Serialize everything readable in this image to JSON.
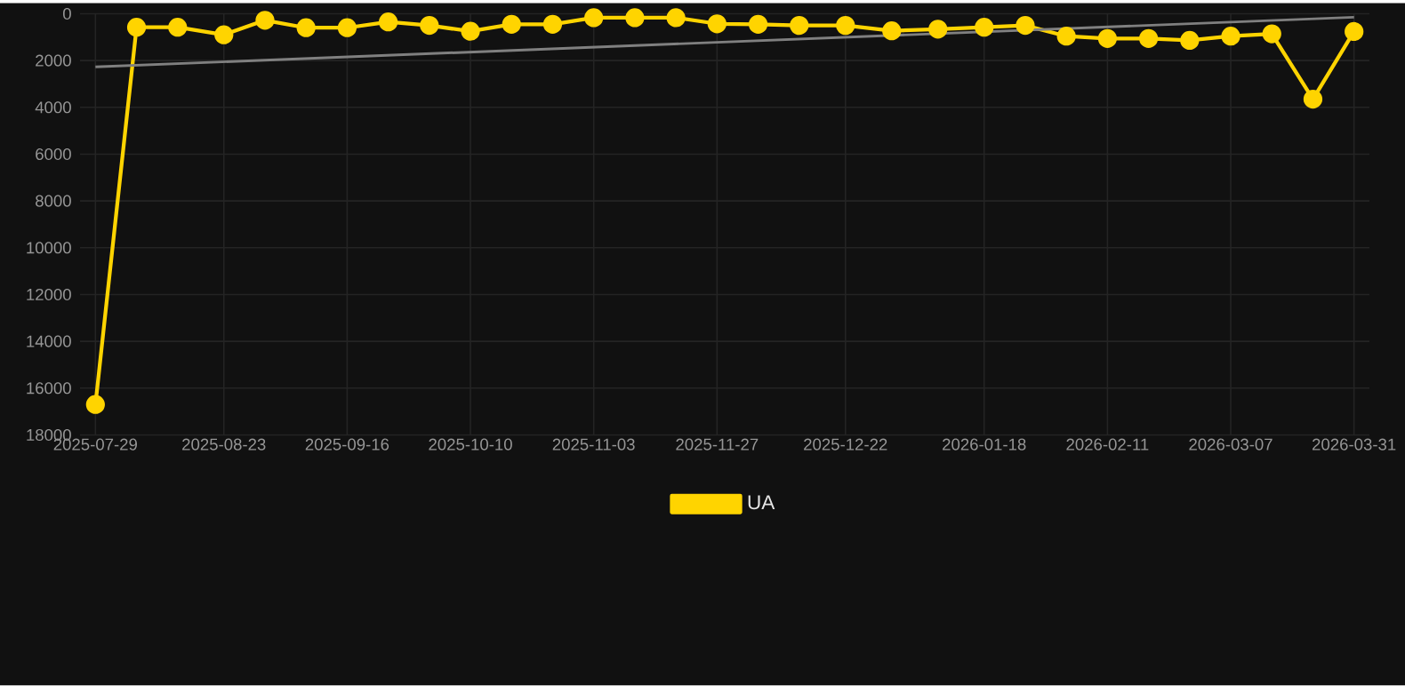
{
  "chart_data": {
    "type": "line",
    "marker": "circle",
    "grid": true,
    "legend": "bottom",
    "x": [
      "2025-07-29",
      "2025-08-06",
      "2025-08-14",
      "2025-08-23",
      "2025-08-31",
      "2025-09-08",
      "2025-09-16",
      "2025-09-24",
      "2025-10-02",
      "2025-10-10",
      "2025-10-18",
      "2025-10-26",
      "2025-11-03",
      "2025-11-11",
      "2025-11-19",
      "2025-11-27",
      "2025-12-05",
      "2025-12-13",
      "2025-12-22",
      "2025-12-31",
      "2026-01-09",
      "2026-01-18",
      "2026-01-26",
      "2026-02-03",
      "2026-02-11",
      "2026-02-19",
      "2026-02-27",
      "2026-03-07",
      "2026-03-15",
      "2026-03-23",
      "2026-03-31"
    ],
    "series": [
      {
        "name": "UA",
        "color": "#ffd400",
        "values": [
          16700,
          580,
          580,
          900,
          280,
          600,
          600,
          350,
          500,
          750,
          450,
          450,
          170,
          170,
          170,
          430,
          450,
          500,
          500,
          730,
          660,
          580,
          500,
          960,
          1060,
          1060,
          1140,
          960,
          860,
          3650,
          760
        ]
      },
      {
        "type": "line",
        "marker": "none",
        "color": "#808080",
        "x": [
          "2025-07-29",
          "2026-03-31"
        ],
        "values": [
          2270,
          150
        ]
      }
    ],
    "xlim": [
      "2025-07-26",
      "2026-04-03"
    ],
    "xticks": [
      "2025-07-29",
      "2025-08-23",
      "2025-09-16",
      "2025-10-10",
      "2025-11-03",
      "2025-11-27",
      "2025-12-22",
      "2026-01-18",
      "2026-02-11",
      "2026-03-07",
      "2026-03-31"
    ],
    "ylim": [
      18000,
      0
    ],
    "yticks": [
      0,
      2000,
      4000,
      6000,
      8000,
      10000,
      12000,
      14000,
      16000,
      18000
    ]
  }
}
